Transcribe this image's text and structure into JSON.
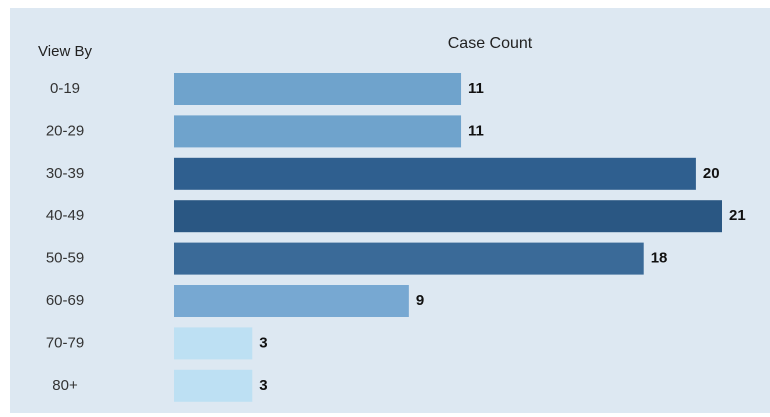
{
  "chart_data": {
    "type": "bar",
    "orientation": "horizontal",
    "title": "Case Count",
    "y_label": "View By",
    "categories": [
      "0-19",
      "20-29",
      "30-39",
      "40-49",
      "50-59",
      "60-69",
      "70-79",
      "80+"
    ],
    "values": [
      11,
      11,
      20,
      21,
      18,
      9,
      3,
      3
    ],
    "colors": [
      "#6fa3cc",
      "#6fa3cc",
      "#2f5f8f",
      "#2a5783",
      "#3a6a98",
      "#77a8d2",
      "#bde0f3",
      "#bde0f3"
    ]
  }
}
